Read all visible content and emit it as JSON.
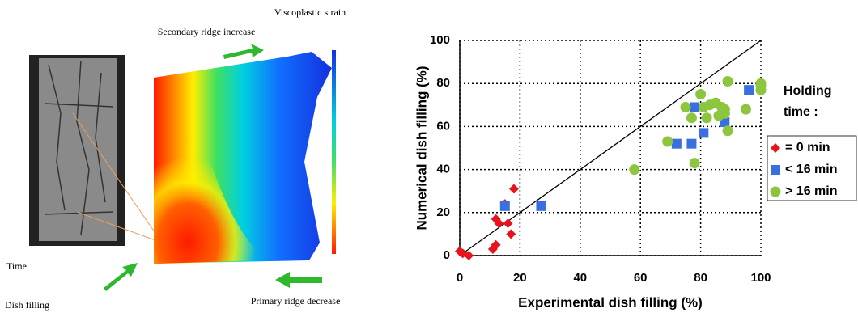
{
  "figure_labels": {
    "colorbar_title": "Viscoplastic strain",
    "top_arrow": "Secondary ridge increase",
    "time": "Time",
    "dish_filling": "Dish filling",
    "bottom_arrow": "Primary ridge decrease"
  },
  "chart_data": {
    "type": "scatter",
    "xlabel": "Experimental dish filling (%)",
    "ylabel": "Numerical dish filling (%)",
    "xlim": [
      0,
      100
    ],
    "ylim": [
      0,
      100
    ],
    "xticks": [
      0,
      20,
      40,
      60,
      80,
      100
    ],
    "yticks": [
      0,
      20,
      40,
      60,
      80,
      100
    ],
    "grid": true,
    "identity_line": true,
    "legend_title": "Holding time :",
    "series": [
      {
        "name": "= 0 min",
        "color": "#e8141c",
        "marker": "diamond",
        "x": [
          0,
          1,
          3,
          11,
          12,
          12,
          13,
          15,
          16,
          17,
          18
        ],
        "values": [
          2,
          1,
          0,
          3,
          17,
          5,
          15,
          24,
          15,
          10,
          31
        ]
      },
      {
        "name": "< 16 min",
        "color": "#3a6fe0",
        "marker": "square",
        "x": [
          15,
          27,
          72,
          77,
          78,
          81,
          88,
          96,
          100
        ],
        "values": [
          23,
          23,
          52,
          52,
          69,
          57,
          62,
          77,
          78
        ]
      },
      {
        "name": "> 16 min",
        "color": "#8cc63f",
        "marker": "circle",
        "x": [
          58,
          69,
          75,
          78,
          77,
          80,
          81,
          82,
          83,
          85,
          86,
          87,
          88,
          88,
          89,
          89,
          95,
          100,
          100,
          100
        ],
        "values": [
          40,
          53,
          69,
          43,
          64,
          75,
          69,
          64,
          70,
          71,
          65,
          69,
          68,
          66,
          81,
          58,
          68,
          80,
          77,
          79
        ]
      }
    ]
  }
}
